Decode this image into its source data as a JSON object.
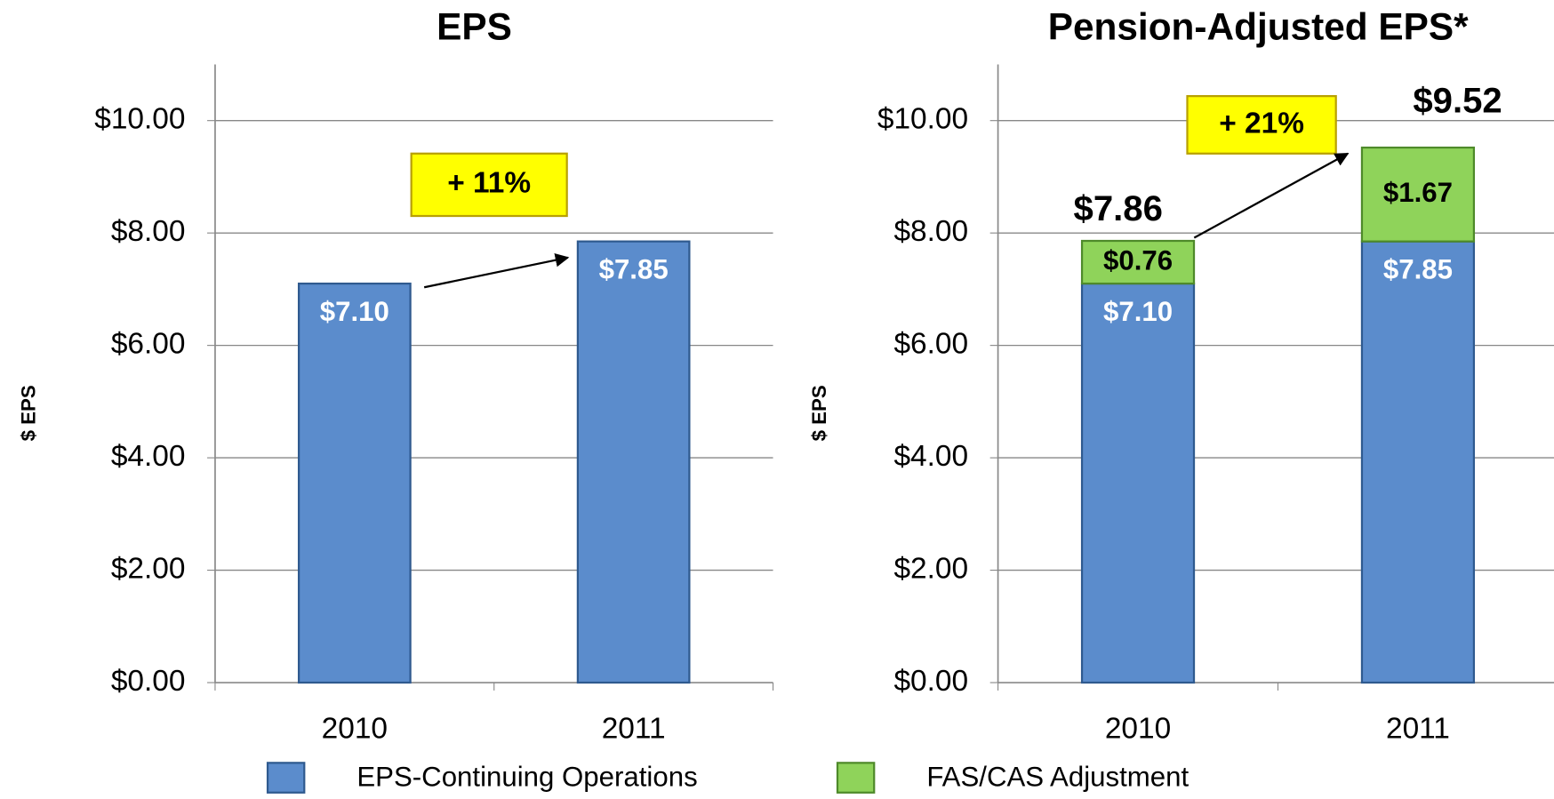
{
  "chart_data": [
    {
      "type": "bar",
      "title": "EPS",
      "y_label": "$ EPS",
      "categories": [
        "2010",
        "2011"
      ],
      "values": [
        7.1,
        7.85
      ],
      "value_labels": [
        "$7.10",
        "$7.85"
      ],
      "color": "#5b8ccc",
      "ylim": [
        0,
        11
      ],
      "yticks": [
        {
          "value": 0,
          "label": "$0.00"
        },
        {
          "value": 2,
          "label": "$2.00"
        },
        {
          "value": 4,
          "label": "$4.00"
        },
        {
          "value": 6,
          "label": "$6.00"
        },
        {
          "value": 8,
          "label": "$8.00"
        },
        {
          "value": 10,
          "label": "$10.00"
        }
      ],
      "grid": true,
      "annotation": "+ 11%"
    },
    {
      "type": "stacked_bar",
      "title": "Pension-Adjusted EPS*",
      "y_label": "$ EPS",
      "categories": [
        "2010",
        "2011"
      ],
      "series": [
        {
          "name": "EPS-Continuing  Operations",
          "color": "#5b8ccc",
          "values": [
            7.1,
            7.85
          ],
          "value_labels": [
            "$7.10",
            "$7.85"
          ]
        },
        {
          "name": "FAS/CAS Adjustment",
          "color": "#8fd35a",
          "values": [
            0.76,
            1.67
          ],
          "value_labels": [
            "$0.76",
            "$1.67"
          ]
        }
      ],
      "totals": [
        7.86,
        9.52
      ],
      "total_labels": [
        "$7.86",
        "$9.52"
      ],
      "ylim": [
        0,
        11
      ],
      "yticks": [
        {
          "value": 0,
          "label": "$0.00"
        },
        {
          "value": 2,
          "label": "$2.00"
        },
        {
          "value": 4,
          "label": "$4.00"
        },
        {
          "value": 6,
          "label": "$6.00"
        },
        {
          "value": 8,
          "label": "$8.00"
        },
        {
          "value": 10,
          "label": "$10.00"
        }
      ],
      "grid": true,
      "annotation": "+ 21%",
      "legend": "bottom"
    }
  ]
}
